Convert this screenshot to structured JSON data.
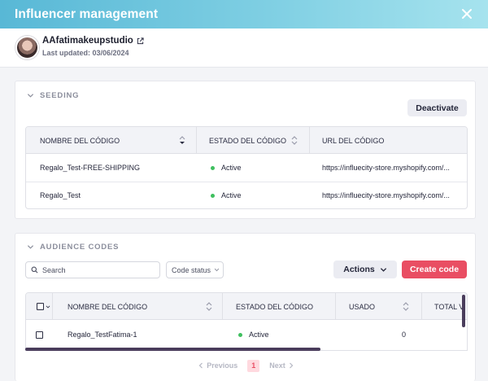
{
  "header": {
    "title": "Influencer management"
  },
  "profile": {
    "name": "AAfatimakeupstudio",
    "last_updated": "Last updated: 03/06/2024"
  },
  "seeding": {
    "title": "SEEDING",
    "deactivate_label": "Deactivate",
    "columns": [
      "NOMBRE DEL CÓDIGO",
      "ESTADO DEL CÓDIGO",
      "URL DEL CÓDIGO"
    ],
    "rows": [
      {
        "name": "Regalo_Test-FREE-SHIPPING",
        "status": "Active",
        "url": "https://influecity-store.myshopify.com/..."
      },
      {
        "name": "Regalo_Test",
        "status": "Active",
        "url": "https://influecity-store.myshopify.com/..."
      }
    ]
  },
  "audience": {
    "title": "AUDIENCE CODES",
    "search_placeholder": "Search",
    "code_status_label": "Code status",
    "actions_label": "Actions",
    "create_label": "Create code",
    "columns": [
      "NOMBRE DEL CÓDIGO",
      "ESTADO DEL CÓDIGO",
      "USADO",
      "TOTAL V"
    ],
    "rows": [
      {
        "name": "Regalo_TestFatima-1",
        "status": "Active",
        "used": "0"
      }
    ],
    "pagination": {
      "previous": "Previous",
      "page": "1",
      "next": "Next"
    }
  },
  "colors": {
    "accent": "#e94e63",
    "active": "#3fbf5f",
    "header_start": "#58b8d6",
    "header_end": "#a6e3ee"
  }
}
